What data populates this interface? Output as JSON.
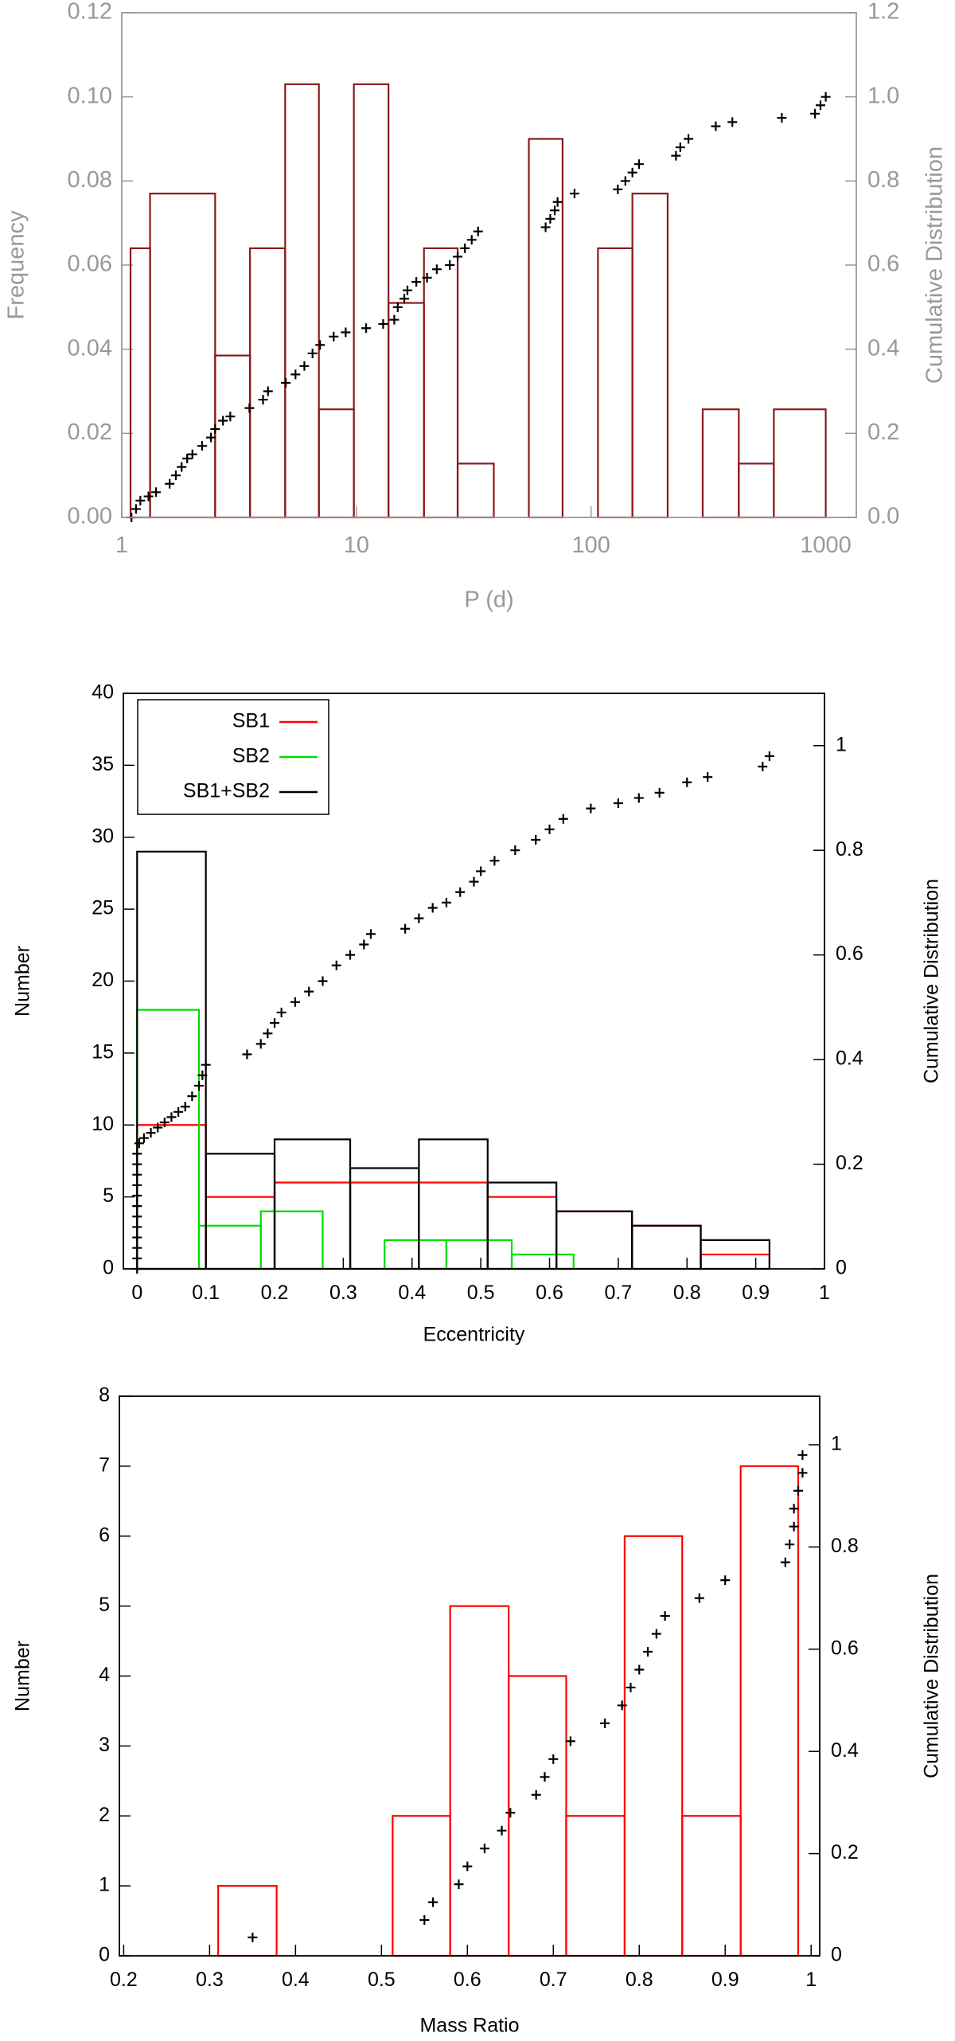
{
  "chart_data": [
    {
      "type": "histogram",
      "xscale": "log",
      "axis_color": "#999999",
      "xlabel": "P (d)",
      "ylabel": "Frequency",
      "y2label": "Cumulative Distribution",
      "xlim": [
        1,
        1350
      ],
      "ylim": [
        0,
        0.12
      ],
      "y2lim": [
        0,
        1.2
      ],
      "xticks": [
        1,
        10,
        100,
        1000
      ],
      "yticks": [
        {
          "value": 0,
          "label": "0.00"
        },
        0.02,
        0.04,
        0.06,
        0.08,
        {
          "value": 0.1,
          "label": "0.10"
        },
        0.12
      ],
      "y2ticks": [
        {
          "value": 0,
          "label": "0.0"
        },
        0.2,
        0.4,
        0.6,
        0.8,
        {
          "value": 1,
          "label": "1.0"
        },
        1.2
      ],
      "series": [
        {
          "color": "#8b1a1a",
          "bins": [
            1.09,
            1.32,
            2.5,
            3.52,
            4.97,
            6.92,
            9.75,
            13.7,
            19.4,
            27,
            38.5,
            54.3,
            75.6,
            107,
            150,
            212,
            299,
            426,
            601,
            1000
          ],
          "values": [
            0.064,
            0.077,
            0.0385,
            0.064,
            0.103,
            0.0257,
            0.103,
            0.051,
            0.064,
            0.0128,
            0,
            0.09,
            0,
            0.064,
            0.077,
            0,
            0.0257,
            0.0128,
            0.0257
          ]
        },
        {
          "type": "scatter",
          "axis": "y2",
          "color": "#000000",
          "x": [
            1.1,
            1.15,
            1.2,
            1.3,
            1.4,
            1.6,
            1.7,
            1.8,
            1.9,
            2.0,
            2.2,
            2.4,
            2.5,
            2.7,
            2.9,
            3.5,
            4.0,
            4.2,
            5.0,
            5.5,
            6.0,
            6.5,
            7.0,
            8.0,
            9.0,
            11,
            13,
            14.5,
            15,
            16,
            16.5,
            18,
            20,
            22,
            25,
            27,
            29,
            31,
            33,
            64,
            67,
            70,
            72,
            85,
            130,
            140,
            150,
            160,
            230,
            240,
            260,
            340,
            400,
            650,
            900,
            950,
            1000
          ],
          "values": [
            0.0,
            0.02,
            0.04,
            0.05,
            0.06,
            0.08,
            0.1,
            0.12,
            0.14,
            0.15,
            0.17,
            0.19,
            0.21,
            0.23,
            0.24,
            0.26,
            0.28,
            0.3,
            0.32,
            0.34,
            0.36,
            0.39,
            0.41,
            0.43,
            0.44,
            0.45,
            0.46,
            0.47,
            0.5,
            0.52,
            0.54,
            0.56,
            0.57,
            0.59,
            0.6,
            0.62,
            0.64,
            0.66,
            0.68,
            0.69,
            0.71,
            0.73,
            0.75,
            0.77,
            0.78,
            0.8,
            0.82,
            0.84,
            0.86,
            0.88,
            0.9,
            0.93,
            0.94,
            0.95,
            0.96,
            0.98,
            1.0
          ]
        }
      ]
    },
    {
      "type": "histogram",
      "axis_color": "#000000",
      "legend": "upper left",
      "xlabel": "Eccentricity",
      "ylabel": "Number",
      "y2label": "Cumulative Distribution",
      "xlim": [
        -0.02,
        1
      ],
      "ylim": [
        0,
        40
      ],
      "y2lim": [
        0,
        1.1
      ],
      "xticks": [
        0,
        0.1,
        0.2,
        0.3,
        0.4,
        0.5,
        0.6,
        0.7,
        0.8,
        0.9,
        1
      ],
      "yticks": [
        0,
        5,
        10,
        15,
        20,
        25,
        30,
        35,
        40
      ],
      "y2ticks": [
        0,
        0.2,
        0.4,
        0.6,
        0.8,
        1
      ],
      "series": [
        {
          "name": "SB1",
          "color": "#ff0000",
          "bins": [
            0,
            0.1,
            0.2,
            0.31,
            0.41,
            0.51,
            0.61,
            0.72,
            0.82,
            0.92
          ],
          "values": [
            10,
            5,
            6,
            6,
            6,
            5,
            4,
            3,
            1
          ]
        },
        {
          "name": "SB2",
          "color": "#00dd00",
          "bins": [
            0,
            0.09,
            0.18,
            0.27,
            0.36,
            0.45,
            0.545,
            0.635
          ],
          "values": [
            18,
            3,
            4,
            0,
            2,
            2,
            1
          ]
        },
        {
          "name": "SB1+SB2",
          "color": "#000000",
          "bins": [
            0,
            0.1,
            0.2,
            0.31,
            0.41,
            0.51,
            0.61,
            0.72,
            0.82,
            0.92
          ],
          "values": [
            29,
            8,
            9,
            7,
            9,
            6,
            4,
            3,
            2
          ]
        },
        {
          "type": "scatter",
          "axis": "y2",
          "color": "#000000",
          "x": [
            0,
            0,
            0,
            0,
            0,
            0,
            0,
            0,
            0,
            0,
            0,
            0,
            0.003,
            0.01,
            0.02,
            0.03,
            0.04,
            0.05,
            0.06,
            0.07,
            0.08,
            0.09,
            0.095,
            0.1,
            0.16,
            0.18,
            0.19,
            0.2,
            0.21,
            0.23,
            0.25,
            0.27,
            0.29,
            0.31,
            0.33,
            0.34,
            0.39,
            0.41,
            0.43,
            0.45,
            0.47,
            0.49,
            0.5,
            0.52,
            0.55,
            0.58,
            0.6,
            0.62,
            0.66,
            0.7,
            0.73,
            0.76,
            0.8,
            0.83,
            0.91,
            0.92
          ],
          "values": [
            0,
            0.02,
            0.04,
            0.06,
            0.08,
            0.1,
            0.12,
            0.14,
            0.16,
            0.18,
            0.2,
            0.22,
            0.24,
            0.25,
            0.26,
            0.27,
            0.28,
            0.29,
            0.3,
            0.31,
            0.33,
            0.35,
            0.37,
            0.39,
            0.41,
            0.43,
            0.45,
            0.47,
            0.49,
            0.51,
            0.53,
            0.55,
            0.58,
            0.6,
            0.62,
            0.64,
            0.65,
            0.67,
            0.69,
            0.7,
            0.72,
            0.74,
            0.76,
            0.78,
            0.8,
            0.82,
            0.84,
            0.86,
            0.88,
            0.89,
            0.9,
            0.91,
            0.93,
            0.94,
            0.96,
            0.98
          ]
        }
      ]
    },
    {
      "type": "histogram",
      "axis_color": "#000000",
      "xlabel": "Mass Ratio",
      "ylabel": "Number",
      "y2label": "Cumulative Distribution",
      "xlim": [
        0.195,
        1.01
      ],
      "ylim": [
        0,
        8
      ],
      "y2lim": [
        0,
        1.095
      ],
      "xticks": [
        0.2,
        0.3,
        0.4,
        0.5,
        0.6,
        0.7,
        0.8,
        0.9,
        1
      ],
      "yticks": [
        0,
        1,
        2,
        3,
        4,
        5,
        6,
        7,
        8
      ],
      "y2ticks": [
        0,
        0.2,
        0.4,
        0.6,
        0.8,
        1
      ],
      "series": [
        {
          "color": "#ff0000",
          "bins": [
            0.31,
            0.378,
            0.445,
            0.513,
            0.58,
            0.648,
            0.715,
            0.783,
            0.85,
            0.918,
            0.985
          ],
          "values": [
            1,
            0,
            0,
            2,
            5,
            4,
            2,
            6,
            2,
            7
          ]
        },
        {
          "type": "scatter",
          "axis": "y2",
          "color": "#000000",
          "x": [
            0.35,
            0.55,
            0.56,
            0.59,
            0.6,
            0.62,
            0.64,
            0.65,
            0.68,
            0.69,
            0.7,
            0.72,
            0.76,
            0.78,
            0.79,
            0.8,
            0.81,
            0.82,
            0.83,
            0.87,
            0.9,
            0.97,
            0.975,
            0.98,
            0.98,
            0.985,
            0.99,
            0.99
          ],
          "values": [
            0.036,
            0.07,
            0.105,
            0.14,
            0.175,
            0.21,
            0.245,
            0.28,
            0.315,
            0.35,
            0.385,
            0.42,
            0.455,
            0.49,
            0.525,
            0.56,
            0.595,
            0.63,
            0.665,
            0.7,
            0.735,
            0.77,
            0.805,
            0.84,
            0.875,
            0.91,
            0.945,
            0.98
          ]
        }
      ]
    }
  ]
}
